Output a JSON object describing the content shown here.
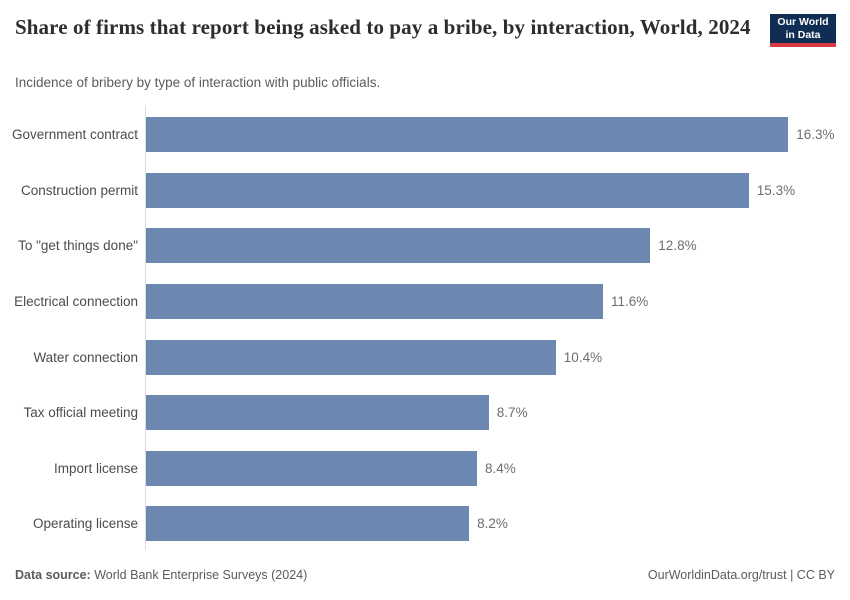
{
  "header": {
    "title": "Share of firms that report being asked to pay a bribe, by interaction, World, 2024",
    "subtitle": "Incidence of bribery by type of interaction with public officials.",
    "logo": {
      "line1": "Our World",
      "line2": "in Data"
    }
  },
  "chart_data": {
    "type": "bar",
    "orientation": "horizontal",
    "title": "Share of firms that report being asked to pay a bribe, by interaction, World, 2024",
    "subtitle": "Incidence of bribery by type of interaction with public officials.",
    "categories": [
      "Government contract",
      "Construction permit",
      "To \"get things done\"",
      "Electrical connection",
      "Water connection",
      "Tax official meeting",
      "Import license",
      "Operating license"
    ],
    "values": [
      16.3,
      15.3,
      12.8,
      11.6,
      10.4,
      8.7,
      8.4,
      8.2
    ],
    "value_labels": [
      "16.3%",
      "15.3%",
      "12.8%",
      "11.6%",
      "10.4%",
      "8.7%",
      "8.4%",
      "8.2%"
    ],
    "unit": "%",
    "xlim": [
      0,
      16.5
    ],
    "grid": false,
    "legend": "none",
    "bar_color": "#6d88b0"
  },
  "footer": {
    "data_source_label": "Data source:",
    "data_source_value": "World Bank Enterprise Surveys (2024)",
    "attribution": "OurWorldinData.org/trust | CC BY"
  },
  "colors": {
    "bar": "#6d88b0",
    "axis_line": "#dcdcdc",
    "logo_bg": "#102e54",
    "logo_accent": "#d93a45",
    "title_text": "#2d2d2d",
    "subtitle_text": "#5b5b5b",
    "category_label_text": "#4b4b4b",
    "value_label_text": "#6e6e6e"
  }
}
